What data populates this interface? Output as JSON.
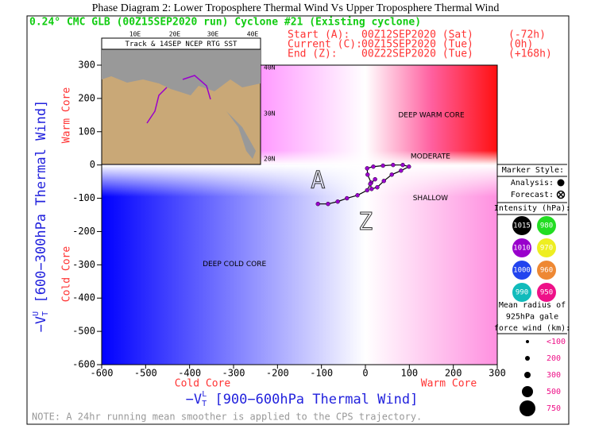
{
  "chart_data": {
    "type": "line",
    "title": "Phase Diagram 2: Lower Troposphere Thermal Wind Vs Upper Troposphere Thermal Wind",
    "subtitle": "0.24° CMC GLB (00Z15SEP2020 run) Cyclone #21 (Existing cyclone)",
    "times": [
      {
        "label": "Start (A):",
        "date": "00Z12SEP2020 (Sat)",
        "offset": "(-72h)"
      },
      {
        "label": "Current (C):",
        "date": "00Z15SEP2020 (Tue)",
        "offset": "(0h)"
      },
      {
        "label": "End (Z):",
        "date": "00Z22SEP2020 (Tue)",
        "offset": "(+168h)"
      }
    ],
    "x": [
      -108,
      -85,
      -63,
      -42,
      -18,
      4,
      13,
      5,
      4,
      18,
      40,
      63,
      85,
      99,
      81,
      60,
      42,
      27,
      14,
      11,
      22
    ],
    "values": [
      -117,
      -117,
      -110,
      -100,
      -91,
      -76,
      -53,
      -29,
      -10,
      -5,
      -2,
      0,
      0,
      -5,
      -17,
      -29,
      -48,
      -67,
      -72,
      -57,
      -43
    ],
    "color": "#9900cc",
    "line_color": "#000000",
    "start_label": "A",
    "end_label": "Z",
    "xlim": [
      -600,
      300
    ],
    "xticks": [
      -600,
      -500,
      -400,
      -300,
      -200,
      -100,
      0,
      100,
      200,
      300
    ],
    "ylim": [
      -600,
      300
    ],
    "yticks": [
      300,
      200,
      100,
      0,
      -100,
      -200,
      -300,
      -400,
      -500,
      -600
    ],
    "xlabel": {
      "main": "−V",
      "sub": "T",
      "sup": "L",
      "rest": " [900−600hPa Thermal Wind]"
    },
    "ylabel": {
      "main": "−V",
      "sub": "T",
      "sup": "U",
      "rest": " [600−300hPa Thermal Wind]"
    },
    "x_side_labels": [
      "Cold Core",
      "Warm Core"
    ],
    "y_side_labels": [
      "Warm Core",
      "Cold Core"
    ],
    "annotations": [
      "DEEP WARM CORE",
      "MODERATE",
      "SHALLOW",
      "DEEP COLD CORE"
    ],
    "note": "NOTE:  A 24hr running mean smoother is applied to the CPS trajectory.",
    "inset": {
      "title": "Track & 14SEP NCEP RTG SST",
      "lon_labels": [
        "10E",
        "20E",
        "30E",
        "40E"
      ],
      "lat_labels": [
        "40N",
        "30N",
        "20N"
      ]
    },
    "legend": {
      "marker_title": "Marker Style:",
      "analysis": "Analysis:",
      "forecast": "Forecast:",
      "intensity_title": "Intensity (hPa):",
      "intensity": [
        {
          "label": 1015,
          "color": "#000000"
        },
        {
          "label": 980,
          "color": "#22dd22"
        },
        {
          "label": 1010,
          "color": "#9900cc"
        },
        {
          "label": 970,
          "color": "#eeee22"
        },
        {
          "label": 1000,
          "color": "#2244ee"
        },
        {
          "label": 960,
          "color": "#ee8833"
        },
        {
          "label": 990,
          "color": "#11bbbb"
        },
        {
          "label": 950,
          "color": "#ee1188"
        }
      ],
      "radius_title": [
        "Mean radius of",
        "925hPa gale",
        "force wind (km):"
      ],
      "radius": [
        "<100",
        200,
        300,
        500,
        750
      ]
    }
  }
}
